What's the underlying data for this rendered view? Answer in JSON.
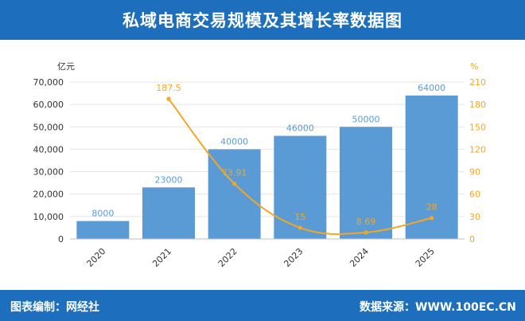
{
  "title": "私域电商交易规模及其增长率数据图",
  "footer": {
    "editor_label": "图表编制：",
    "editor": "网经社",
    "source_label": "数据来源：",
    "source": "WWW.100EC.CN"
  },
  "colors": {
    "header": "#1d6fbd",
    "bar": "#5b9bd5",
    "bar_label": "#5b9bd5",
    "line": "#f5a623",
    "left_axis_text": "#333333",
    "right_axis_text": "#f5a623",
    "grid": "#e4e4e4"
  },
  "chart_data": {
    "type": "bar",
    "categories": [
      "2020",
      "2021",
      "2022",
      "2023",
      "2024",
      "2025"
    ],
    "series": [
      {
        "type": "bar",
        "axis": "left",
        "values": [
          8000,
          23000,
          40000,
          46000,
          50000,
          64000
        ]
      },
      {
        "type": "line",
        "axis": "right",
        "values": [
          null,
          187.5,
          73.91,
          15,
          8.69,
          28
        ]
      }
    ],
    "y_left": {
      "unit": "亿元",
      "min": 0,
      "max": 70000,
      "ticks": [
        "0",
        "10,000",
        "20,000",
        "30,000",
        "40,000",
        "50,000",
        "60,000",
        "70,000"
      ]
    },
    "y_right": {
      "unit": "%",
      "min": 0,
      "max": 210,
      "ticks": [
        "0",
        "30",
        "60",
        "90",
        "120",
        "150",
        "180",
        "210"
      ]
    },
    "bar_labels": [
      "8000",
      "23000",
      "40000",
      "46000",
      "50000",
      "64000"
    ],
    "line_labels": [
      "",
      "187.5",
      "73.91",
      "15",
      "8.69",
      "28"
    ],
    "grid": true,
    "legend": "none"
  }
}
